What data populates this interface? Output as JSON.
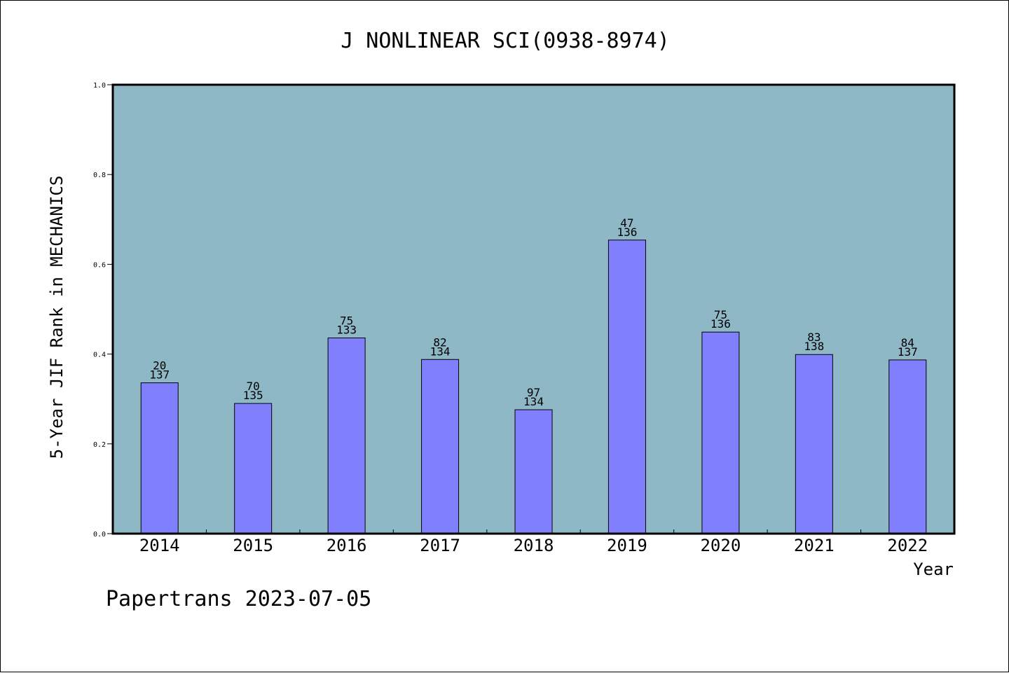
{
  "chart_data": {
    "type": "bar",
    "title": "J NONLINEAR SCI(0938-8974)",
    "xlabel": "Year",
    "ylabel": "5-Year JIF Rank in MECHANICS",
    "ylim": [
      0,
      1.0
    ],
    "yticks": [
      "0.0",
      "0.2",
      "0.4",
      "0.6",
      "0.8",
      "1.0"
    ],
    "grid": false,
    "categories": [
      "2014",
      "2015",
      "2016",
      "2017",
      "2018",
      "2019",
      "2020",
      "2021",
      "2022"
    ],
    "values": [
      0.336,
      0.29,
      0.436,
      0.388,
      0.276,
      0.654,
      0.449,
      0.399,
      0.387
    ],
    "labels_top": [
      "20",
      "70",
      "75",
      "82",
      "97",
      "47",
      "75",
      "83",
      "84"
    ],
    "labels_bottom": [
      "137",
      "135",
      "133",
      "134",
      "134",
      "136",
      "136",
      "138",
      "137"
    ],
    "colors": {
      "plot_background": "#8fb8c6",
      "bar_fill": "#8080ff",
      "bar_stroke": "#000000"
    }
  },
  "footer": "Papertrans 2023-07-05"
}
